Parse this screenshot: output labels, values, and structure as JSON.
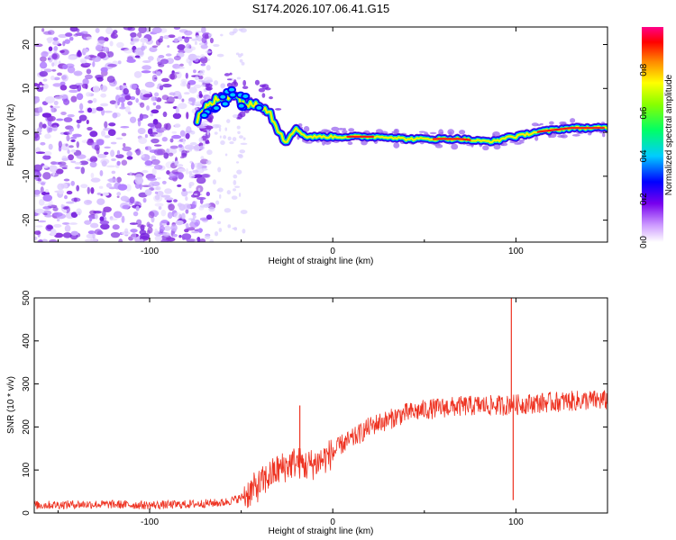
{
  "title": "S174.2026.107.06.41.G15",
  "chart_data": [
    {
      "type": "heatmap",
      "title": "S174.2026.107.06.41.G15",
      "xlabel": "Height of straight line (km)",
      "ylabel": "Frequency (Hz)",
      "xlim": [
        -163,
        150
      ],
      "ylim": [
        -25,
        24
      ],
      "x_ticks": [
        -100,
        0,
        100
      ],
      "x_tick_labels": [
        "-100",
        "0",
        "100"
      ],
      "y_ticks": [
        -20,
        -10,
        0,
        10,
        20
      ],
      "y_tick_labels": [
        "-20",
        "-10",
        "0",
        "10",
        "20"
      ],
      "ridge": {
        "x": [
          -74,
          -70,
          -65,
          -60,
          -55,
          -50,
          -45,
          -40,
          -35,
          -30,
          -25,
          -20,
          -15,
          -10,
          -5,
          0,
          10,
          20,
          30,
          40,
          50,
          60,
          70,
          80,
          85,
          90,
          95,
          100,
          110,
          120,
          130,
          140,
          150
        ],
        "y": [
          3,
          5,
          7,
          8,
          9,
          7,
          6,
          7,
          5,
          1,
          -2,
          1,
          -1,
          -1,
          -1,
          -1,
          -1,
          -1,
          -1,
          -1.5,
          -1.5,
          -1.5,
          -1.5,
          -2,
          -2,
          -2,
          -1,
          -1,
          0,
          0.5,
          1,
          1,
          1
        ]
      },
      "noise_region_x": [
        -163,
        -74
      ],
      "colorbar": {
        "label": "Normalized spectral amplitude",
        "range": [
          0,
          1
        ],
        "ticks": [
          0.0,
          0.2,
          0.4,
          0.6,
          0.8
        ],
        "tick_labels": [
          "0.0",
          "0.2",
          "0.4",
          "0.6",
          "0.8"
        ]
      }
    },
    {
      "type": "line",
      "xlabel": "Height of straight line (km)",
      "ylabel": "SNR (10 * v/v)",
      "xlim": [
        -163,
        150
      ],
      "ylim": [
        0,
        500
      ],
      "x_ticks": [
        -100,
        0,
        100
      ],
      "x_tick_labels": [
        "-100",
        "0",
        "100"
      ],
      "y_ticks": [
        0,
        100,
        200,
        300,
        400,
        500
      ],
      "y_tick_labels": [
        "0",
        "100",
        "200",
        "300",
        "400",
        "500"
      ],
      "series": [
        {
          "name": "SNR",
          "color": "#ee3322",
          "x": [
            -163,
            -140,
            -120,
            -100,
            -80,
            -60,
            -50,
            -45,
            -40,
            -35,
            -30,
            -25,
            -20,
            -15,
            -10,
            -5,
            0,
            5,
            10,
            15,
            20,
            25,
            30,
            35,
            40,
            45,
            50,
            60,
            70,
            80,
            90,
            95,
            97,
            98,
            99,
            100,
            110,
            120,
            130,
            140,
            150
          ],
          "values": [
            18,
            20,
            20,
            18,
            20,
            24,
            35,
            50,
            65,
            85,
            100,
            110,
            120,
            110,
            115,
            125,
            140,
            160,
            170,
            185,
            200,
            210,
            215,
            225,
            232,
            235,
            240,
            245,
            248,
            250,
            250,
            250,
            255,
            260,
            250,
            252,
            255,
            258,
            260,
            262,
            262
          ]
        }
      ],
      "spikes": [
        {
          "x": -18,
          "value": 250
        },
        {
          "x": 97.5,
          "value": 500
        },
        {
          "x": 98.5,
          "value": 30
        }
      ]
    }
  ]
}
